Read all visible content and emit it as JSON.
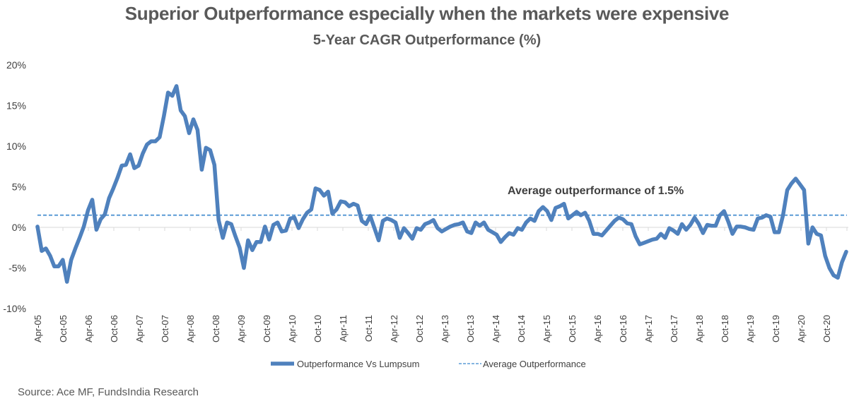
{
  "chart_data": {
    "type": "line",
    "title": "Superior Outperformance especially when the markets were expensive",
    "subtitle": "5-Year CAGR Outperformance (%)",
    "xlabel": "",
    "ylabel": "",
    "ylim": [
      -10,
      20
    ],
    "yticks": [
      20,
      15,
      10,
      5,
      0,
      -5,
      -10
    ],
    "ytick_labels": [
      "20%",
      "15%",
      "10%",
      "5%",
      "0%",
      "-5%",
      "-10%"
    ],
    "x_tick_labels": [
      "Apr-05",
      "Oct-05",
      "Apr-06",
      "Oct-06",
      "Apr-07",
      "Oct-07",
      "Apr-08",
      "Oct-08",
      "Apr-09",
      "Oct-09",
      "Apr-10",
      "Oct-10",
      "Apr-11",
      "Oct-11",
      "Apr-12",
      "Oct-12",
      "Apr-13",
      "Oct-13",
      "Apr-14",
      "Oct-14",
      "Apr-15",
      "Oct-15",
      "Apr-16",
      "Oct-16",
      "Apr-17",
      "Oct-17",
      "Apr-18",
      "Oct-18",
      "Apr-19",
      "Oct-19",
      "Apr-20",
      "Oct-20"
    ],
    "x_start": "Apr-05",
    "x_frequency": "monthly",
    "grid": false,
    "legend_position": "bottom",
    "annotation": "Average outperformance of 1.5%",
    "source": "Source: Ace MF, FundsIndia Research",
    "series": [
      {
        "name": "Outperformance Vs Lumpsum",
        "style": "solid-thick",
        "color": "#4F81BD",
        "values": [
          0.1,
          -2.9,
          -2.6,
          -3.5,
          -4.8,
          -4.8,
          -4.0,
          -6.7,
          -4.0,
          -2.6,
          -1.3,
          0.1,
          2.1,
          3.4,
          -0.3,
          1.0,
          1.6,
          3.6,
          4.8,
          6.1,
          7.6,
          7.7,
          9.0,
          7.3,
          7.6,
          9.1,
          10.2,
          10.6,
          10.6,
          11.1,
          13.7,
          16.6,
          16.2,
          17.4,
          14.4,
          13.7,
          11.6,
          13.3,
          12.0,
          7.1,
          9.8,
          9.5,
          7.7,
          0.9,
          -1.3,
          0.6,
          0.4,
          -1.1,
          -2.5,
          -5.0,
          -1.6,
          -2.8,
          -1.8,
          -1.8,
          0.1,
          -1.5,
          0.3,
          0.6,
          -0.5,
          -0.4,
          1.1,
          1.2,
          -0.1,
          1.0,
          1.8,
          2.2,
          4.8,
          4.6,
          3.9,
          4.4,
          1.7,
          2.2,
          3.2,
          3.1,
          2.6,
          2.9,
          2.7,
          0.8,
          0.4,
          1.4,
          -0.1,
          -1.6,
          0.8,
          1.1,
          0.9,
          0.6,
          -1.3,
          -0.1,
          -0.7,
          -1.4,
          -0.1,
          -0.3,
          0.4,
          0.6,
          0.9,
          -0.1,
          -0.5,
          -0.2,
          0.1,
          0.3,
          0.4,
          0.6,
          -0.5,
          -0.7,
          0.6,
          0.2,
          0.6,
          -0.3,
          -0.6,
          -0.9,
          -1.8,
          -1.2,
          -0.7,
          -0.9,
          -0.1,
          -0.3,
          0.6,
          1.1,
          0.8,
          2.0,
          2.5,
          2.0,
          0.9,
          2.4,
          2.6,
          2.9,
          1.1,
          1.5,
          1.9,
          1.5,
          1.8,
          0.8,
          -0.8,
          -0.8,
          -1.0,
          -0.4,
          0.2,
          0.8,
          1.2,
          1.0,
          0.5,
          0.4,
          -1.1,
          -2.1,
          -1.9,
          -1.7,
          -1.5,
          -1.4,
          -0.8,
          -1.3,
          -0.1,
          -0.4,
          -0.8,
          0.4,
          -0.3,
          0.3,
          1.2,
          0.4,
          -0.7,
          0.3,
          0.2,
          0.2,
          1.5,
          2.0,
          0.7,
          -0.8,
          0.1,
          0.1,
          0.0,
          -0.2,
          -0.3,
          1.1,
          1.2,
          1.5,
          1.3,
          -0.6,
          -0.6,
          1.5,
          4.6,
          5.4,
          6.0,
          5.3,
          4.6,
          -2.0,
          0.0,
          -0.8,
          -1.0,
          -3.5,
          -5.0,
          -5.9,
          -6.2,
          -4.3,
          -3.0
        ]
      },
      {
        "name": "Average Outperformance",
        "style": "dashed",
        "color": "#5B9BD5",
        "value": 1.5
      }
    ]
  }
}
